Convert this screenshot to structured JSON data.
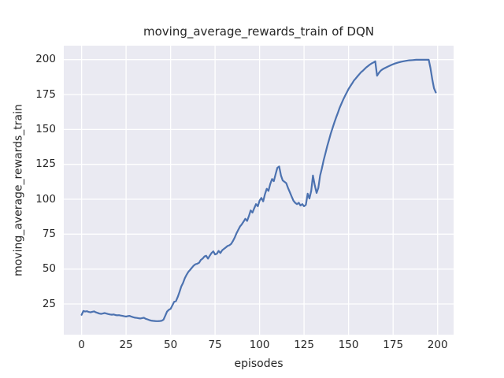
{
  "colors": {
    "figure_bg": "#ffffff",
    "axes_bg": "#eaeaf2",
    "grid": "#ffffff",
    "text": "#262626",
    "line": "#4c72b0"
  },
  "chart_data": {
    "type": "line",
    "title": "moving_average_rewards_train of DQN",
    "xlabel": "episodes",
    "ylabel": "moving_average_rewards_train",
    "xlim": [
      -10,
      209
    ],
    "ylim": [
      3,
      210
    ],
    "xticks": [
      0,
      25,
      50,
      75,
      100,
      125,
      150,
      175,
      200
    ],
    "yticks": [
      25,
      50,
      75,
      100,
      125,
      150,
      175,
      200
    ],
    "grid": true,
    "legend_position": "none",
    "series": [
      {
        "name": "moving_average_rewards_train",
        "color": "#4c72b0",
        "points": [
          [
            0,
            17.2
          ],
          [
            1,
            20.0
          ],
          [
            2,
            19.6
          ],
          [
            3,
            19.8
          ],
          [
            4,
            19.3
          ],
          [
            5,
            19.0
          ],
          [
            6,
            19.4
          ],
          [
            7,
            19.7
          ],
          [
            8,
            19.0
          ],
          [
            9,
            18.6
          ],
          [
            10,
            18.1
          ],
          [
            11,
            17.9
          ],
          [
            12,
            18.2
          ],
          [
            13,
            18.5
          ],
          [
            14,
            18.1
          ],
          [
            15,
            17.8
          ],
          [
            16,
            17.5
          ],
          [
            17,
            17.3
          ],
          [
            18,
            17.5
          ],
          [
            19,
            17.1
          ],
          [
            20,
            16.9
          ],
          [
            21,
            17.0
          ],
          [
            22,
            16.7
          ],
          [
            23,
            16.5
          ],
          [
            24,
            16.2
          ],
          [
            25,
            16.0
          ],
          [
            26,
            16.3
          ],
          [
            27,
            16.5
          ],
          [
            28,
            15.9
          ],
          [
            29,
            15.5
          ],
          [
            30,
            15.2
          ],
          [
            31,
            15.0
          ],
          [
            32,
            14.8
          ],
          [
            33,
            14.6
          ],
          [
            34,
            14.9
          ],
          [
            35,
            15.1
          ],
          [
            36,
            14.4
          ],
          [
            37,
            14.0
          ],
          [
            38,
            13.5
          ],
          [
            39,
            13.1
          ],
          [
            40,
            12.9
          ],
          [
            41,
            12.8
          ],
          [
            42,
            12.7
          ],
          [
            43,
            12.7
          ],
          [
            44,
            12.8
          ],
          [
            45,
            13.0
          ],
          [
            46,
            13.8
          ],
          [
            47,
            16.5
          ],
          [
            48,
            19.5
          ],
          [
            49,
            20.8
          ],
          [
            50,
            21.5
          ],
          [
            51,
            24.0
          ],
          [
            52,
            26.5
          ],
          [
            53,
            27.0
          ],
          [
            54,
            30.0
          ],
          [
            55,
            33.5
          ],
          [
            56,
            37.5
          ],
          [
            57,
            40.0
          ],
          [
            58,
            43.5
          ],
          [
            59,
            46.0
          ],
          [
            60,
            48.0
          ],
          [
            61,
            49.5
          ],
          [
            62,
            51.0
          ],
          [
            63,
            52.5
          ],
          [
            64,
            53.5
          ],
          [
            65,
            53.8
          ],
          [
            66,
            54.5
          ],
          [
            67,
            56.5
          ],
          [
            68,
            57.5
          ],
          [
            69,
            59.0
          ],
          [
            70,
            59.5
          ],
          [
            71,
            57.5
          ],
          [
            72,
            59.5
          ],
          [
            73,
            61.5
          ],
          [
            74,
            62.7
          ],
          [
            75,
            60.5
          ],
          [
            76,
            61.0
          ],
          [
            77,
            63.0
          ],
          [
            78,
            61.5
          ],
          [
            79,
            63.5
          ],
          [
            80,
            64.5
          ],
          [
            81,
            65.5
          ],
          [
            82,
            66.5
          ],
          [
            83,
            67.0
          ],
          [
            84,
            68.0
          ],
          [
            85,
            70.0
          ],
          [
            86,
            72.5
          ],
          [
            87,
            75.5
          ],
          [
            88,
            78.0
          ],
          [
            89,
            80.5
          ],
          [
            90,
            82.0
          ],
          [
            91,
            84.0
          ],
          [
            92,
            86.0
          ],
          [
            93,
            84.5
          ],
          [
            94,
            88.0
          ],
          [
            95,
            92.0
          ],
          [
            96,
            90.5
          ],
          [
            97,
            93.5
          ],
          [
            98,
            96.5
          ],
          [
            99,
            95.0
          ],
          [
            100,
            99.0
          ],
          [
            101,
            101.0
          ],
          [
            102,
            98.5
          ],
          [
            103,
            103.5
          ],
          [
            104,
            107.5
          ],
          [
            105,
            106.0
          ],
          [
            106,
            111.0
          ],
          [
            107,
            114.5
          ],
          [
            108,
            113.0
          ],
          [
            109,
            118.0
          ],
          [
            110,
            122.5
          ],
          [
            111,
            123.5
          ],
          [
            112,
            117.0
          ],
          [
            113,
            113.5
          ],
          [
            114,
            112.5
          ],
          [
            115,
            111.5
          ],
          [
            116,
            108.0
          ],
          [
            117,
            105.0
          ],
          [
            118,
            102.0
          ],
          [
            119,
            99.0
          ],
          [
            120,
            97.5
          ],
          [
            121,
            96.5
          ],
          [
            122,
            97.5
          ],
          [
            123,
            95.5
          ],
          [
            124,
            96.5
          ],
          [
            125,
            95.0
          ],
          [
            126,
            96.0
          ],
          [
            127,
            104.0
          ],
          [
            128,
            100.5
          ],
          [
            129,
            106.0
          ],
          [
            130,
            117.0
          ],
          [
            131,
            110.0
          ],
          [
            132,
            104.5
          ],
          [
            133,
            108.0
          ],
          [
            134,
            117.0
          ],
          [
            135,
            122.0
          ],
          [
            136,
            128.0
          ],
          [
            137,
            133.0
          ],
          [
            138,
            138.0
          ],
          [
            139,
            142.5
          ],
          [
            140,
            147.0
          ],
          [
            141,
            151.0
          ],
          [
            142,
            155.0
          ],
          [
            143,
            158.5
          ],
          [
            144,
            162.0
          ],
          [
            145,
            165.5
          ],
          [
            146,
            168.5
          ],
          [
            147,
            171.5
          ],
          [
            148,
            174.0
          ],
          [
            149,
            176.5
          ],
          [
            150,
            179.0
          ],
          [
            151,
            181.0
          ],
          [
            152,
            183.0
          ],
          [
            153,
            185.0
          ],
          [
            154,
            186.5
          ],
          [
            155,
            188.0
          ],
          [
            156,
            189.5
          ],
          [
            157,
            191.0
          ],
          [
            158,
            192.0
          ],
          [
            159,
            193.3
          ],
          [
            160,
            194.5
          ],
          [
            161,
            195.5
          ],
          [
            162,
            196.5
          ],
          [
            163,
            197.3
          ],
          [
            164,
            198.0
          ],
          [
            165,
            198.8
          ],
          [
            166,
            188.5
          ],
          [
            167,
            190.5
          ],
          [
            168,
            192.0
          ],
          [
            169,
            193.0
          ],
          [
            170,
            193.7
          ],
          [
            172,
            195.0
          ],
          [
            174,
            196.2
          ],
          [
            176,
            197.2
          ],
          [
            178,
            198.0
          ],
          [
            180,
            198.6
          ],
          [
            182,
            199.1
          ],
          [
            184,
            199.5
          ],
          [
            186,
            199.7
          ],
          [
            188,
            199.9
          ],
          [
            190,
            199.9
          ],
          [
            192,
            199.9
          ],
          [
            194,
            199.9
          ],
          [
            195,
            199.9
          ],
          [
            196,
            194.0
          ],
          [
            197,
            186.0
          ],
          [
            198,
            179.5
          ],
          [
            199,
            176.5
          ]
        ]
      }
    ]
  }
}
